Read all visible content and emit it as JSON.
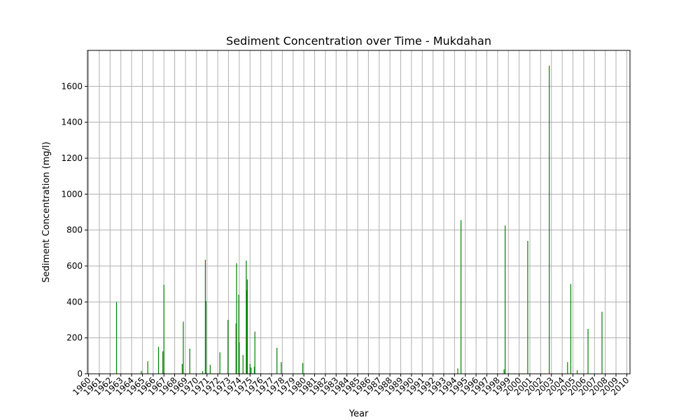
{
  "chart_data": {
    "type": "bar",
    "title": "Sediment Concentration over Time - Mukdahan",
    "xlabel": "Year",
    "ylabel": "Sediment Concentration (mg/l)",
    "xlim": [
      1959.9,
      2010.3
    ],
    "ylim": [
      0,
      1800
    ],
    "y_ticks": [
      0,
      200,
      400,
      600,
      800,
      1000,
      1200,
      1400,
      1600
    ],
    "x_ticks": [
      1960,
      1961,
      1962,
      1963,
      1964,
      1965,
      1966,
      1967,
      1968,
      1969,
      1970,
      1971,
      1972,
      1973,
      1974,
      1975,
      1976,
      1977,
      1978,
      1979,
      1980,
      1981,
      1982,
      1983,
      1984,
      1985,
      1986,
      1987,
      1988,
      1989,
      1990,
      1991,
      1992,
      1993,
      1994,
      1995,
      1996,
      1997,
      1998,
      1999,
      2000,
      2001,
      2002,
      2003,
      2004,
      2005,
      2006,
      2007,
      2008,
      2009,
      2010
    ],
    "grid": true,
    "bar_color": "#008000",
    "points": [
      {
        "x": 1962.6,
        "y": 400
      },
      {
        "x": 1964.9,
        "y": 15
      },
      {
        "x": 1965.5,
        "y": 70
      },
      {
        "x": 1966.5,
        "y": 150
      },
      {
        "x": 1966.9,
        "y": 125
      },
      {
        "x": 1967.0,
        "y": 495
      },
      {
        "x": 1968.7,
        "y": 55
      },
      {
        "x": 1968.8,
        "y": 290
      },
      {
        "x": 1969.4,
        "y": 140
      },
      {
        "x": 1970.6,
        "y": 15
      },
      {
        "x": 1970.85,
        "y": 635
      },
      {
        "x": 1970.9,
        "y": 405
      },
      {
        "x": 1971.3,
        "y": 50
      },
      {
        "x": 1972.2,
        "y": 120
      },
      {
        "x": 1972.95,
        "y": 300
      },
      {
        "x": 1973.7,
        "y": 280
      },
      {
        "x": 1973.75,
        "y": 615
      },
      {
        "x": 1973.95,
        "y": 440
      },
      {
        "x": 1974.0,
        "y": 175
      },
      {
        "x": 1974.35,
        "y": 105
      },
      {
        "x": 1974.65,
        "y": 630
      },
      {
        "x": 1974.7,
        "y": 465
      },
      {
        "x": 1974.75,
        "y": 525
      },
      {
        "x": 1975.0,
        "y": 55
      },
      {
        "x": 1975.1,
        "y": 35
      },
      {
        "x": 1975.4,
        "y": 40
      },
      {
        "x": 1975.45,
        "y": 235
      },
      {
        "x": 1977.5,
        "y": 145
      },
      {
        "x": 1977.9,
        "y": 65
      },
      {
        "x": 1979.9,
        "y": 60
      },
      {
        "x": 1994.3,
        "y": 30
      },
      {
        "x": 1994.6,
        "y": 855
      },
      {
        "x": 1998.6,
        "y": 25
      },
      {
        "x": 1998.7,
        "y": 825
      },
      {
        "x": 2000.8,
        "y": 740
      },
      {
        "x": 2002.8,
        "y": 1715
      },
      {
        "x": 2004.5,
        "y": 65
      },
      {
        "x": 2004.8,
        "y": 500
      },
      {
        "x": 2005.4,
        "y": 20
      },
      {
        "x": 2006.4,
        "y": 250
      },
      {
        "x": 2007.7,
        "y": 345
      }
    ]
  }
}
